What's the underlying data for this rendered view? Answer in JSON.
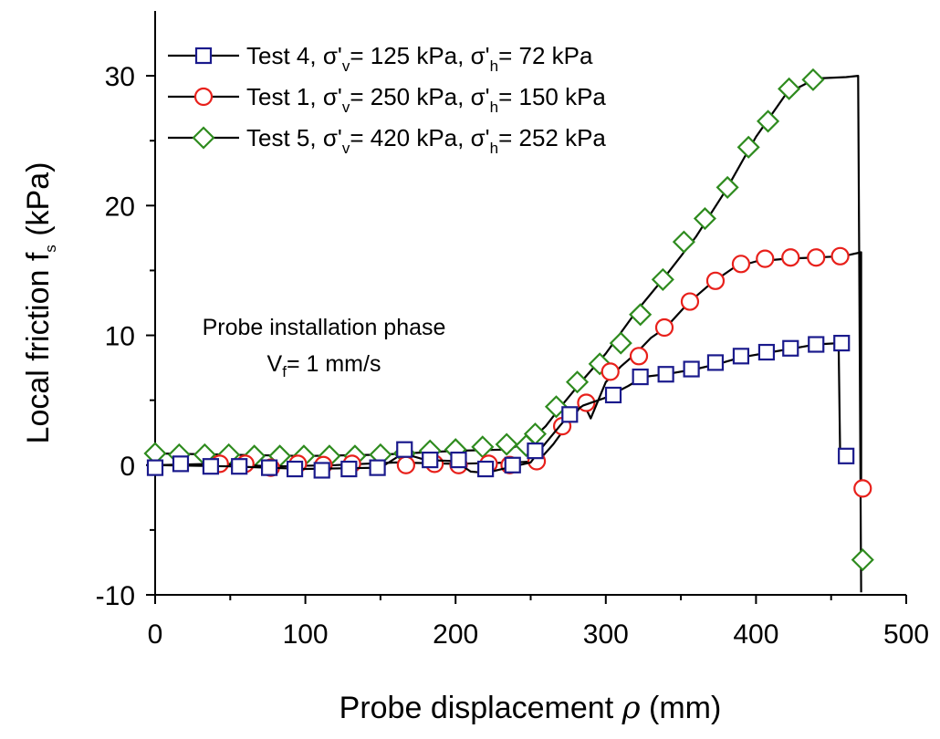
{
  "chart_data": {
    "type": "line",
    "xlabel": {
      "text": "Probe displacement ",
      "symbol": "ρ",
      "unit": " (mm)"
    },
    "ylabel": {
      "text": "Local friction f",
      "sub": "s",
      "unit": " (kPa)"
    },
    "xlim": [
      0,
      500
    ],
    "ylim": [
      -10,
      35
    ],
    "x_ticks": [
      0,
      100,
      200,
      300,
      400,
      500
    ],
    "y_ticks": [
      -10,
      0,
      10,
      20,
      30
    ],
    "legend_position": "top-left",
    "annotation": {
      "line1": "Probe installation phase",
      "line2_main": "V",
      "line2_sub": "f",
      "line2_rest": "= 1 mm/s"
    },
    "series": [
      {
        "name": "Test 4",
        "legend": {
          "prefix": "Test 4, σ'",
          "sub1": "v",
          "mid": "= 125 kPa, σ'",
          "sub2": "h",
          "suffix": "= 72 kPa"
        },
        "marker": "square",
        "color": "#1a1a8c",
        "line": [
          [
            0,
            0
          ],
          [
            50,
            -0.1
          ],
          [
            100,
            -0.3
          ],
          [
            150,
            -0.2
          ],
          [
            165,
            0.9
          ],
          [
            180,
            0.4
          ],
          [
            200,
            0.3
          ],
          [
            210,
            -0.5
          ],
          [
            220,
            -0.6
          ],
          [
            235,
            -0.2
          ],
          [
            250,
            0.2
          ],
          [
            255,
            1.0
          ],
          [
            265,
            2.4
          ],
          [
            275,
            3.8
          ],
          [
            285,
            4.6
          ],
          [
            300,
            5.2
          ],
          [
            315,
            6.1
          ],
          [
            325,
            6.8
          ],
          [
            340,
            7.0
          ],
          [
            360,
            7.4
          ],
          [
            375,
            7.8
          ],
          [
            390,
            8.3
          ],
          [
            410,
            8.7
          ],
          [
            425,
            9.0
          ],
          [
            440,
            9.3
          ],
          [
            455,
            9.4
          ],
          [
            456,
            0.7
          ]
        ],
        "markers": [
          [
            0,
            -0.2
          ],
          [
            17,
            0.1
          ],
          [
            37,
            -0.1
          ],
          [
            56,
            -0.1
          ],
          [
            76,
            -0.2
          ],
          [
            93,
            -0.3
          ],
          [
            111,
            -0.4
          ],
          [
            129,
            -0.3
          ],
          [
            148,
            -0.2
          ],
          [
            166,
            1.2
          ],
          [
            183,
            0.4
          ],
          [
            202,
            0.4
          ],
          [
            220,
            -0.3
          ],
          [
            238,
            0.0
          ],
          [
            253,
            1.1
          ],
          [
            276,
            3.9
          ],
          [
            305,
            5.4
          ],
          [
            323,
            6.8
          ],
          [
            340,
            7.0
          ],
          [
            357,
            7.4
          ],
          [
            373,
            7.9
          ],
          [
            390,
            8.4
          ],
          [
            407,
            8.7
          ],
          [
            423,
            9.0
          ],
          [
            440,
            9.3
          ],
          [
            457,
            9.4
          ],
          [
            460,
            0.7
          ]
        ]
      },
      {
        "name": "Test 1",
        "legend": {
          "prefix": "Test 1, σ'",
          "sub1": "v",
          "mid": "= 250 kPa, σ'",
          "sub2": "h",
          "suffix": "= 150 kPa"
        },
        "marker": "circle",
        "color": "#e8201b",
        "line": [
          [
            0,
            0
          ],
          [
            40,
            0.1
          ],
          [
            80,
            -0.1
          ],
          [
            120,
            0.0
          ],
          [
            160,
            0.2
          ],
          [
            200,
            0.1
          ],
          [
            240,
            0.2
          ],
          [
            255,
            0.3
          ],
          [
            265,
            1.6
          ],
          [
            275,
            3.2
          ],
          [
            285,
            4.8
          ],
          [
            290,
            3.6
          ],
          [
            300,
            6.4
          ],
          [
            310,
            7.6
          ],
          [
            320,
            8.6
          ],
          [
            330,
            9.8
          ],
          [
            340,
            10.6
          ],
          [
            355,
            12.5
          ],
          [
            370,
            14.0
          ],
          [
            385,
            15.2
          ],
          [
            400,
            15.7
          ],
          [
            420,
            15.9
          ],
          [
            440,
            16.0
          ],
          [
            458,
            16.1
          ],
          [
            470,
            16.4
          ],
          [
            470,
            -1.9
          ]
        ],
        "markers": [
          [
            43,
            0.1
          ],
          [
            60,
            0.1
          ],
          [
            77,
            -0.2
          ],
          [
            95,
            0.1
          ],
          [
            112,
            0.0
          ],
          [
            131,
            0.1
          ],
          [
            167,
            0.0
          ],
          [
            186,
            0.1
          ],
          [
            202,
            0.0
          ],
          [
            222,
            0.1
          ],
          [
            236,
            0.0
          ],
          [
            254,
            0.3
          ],
          [
            271,
            3.0
          ],
          [
            287,
            4.8
          ],
          [
            303,
            7.2
          ],
          [
            322,
            8.4
          ],
          [
            339,
            10.6
          ],
          [
            356,
            12.6
          ],
          [
            373,
            14.2
          ],
          [
            390,
            15.5
          ],
          [
            406,
            15.9
          ],
          [
            423,
            16.0
          ],
          [
            440,
            16.0
          ],
          [
            456,
            16.1
          ],
          [
            471,
            -1.8
          ]
        ]
      },
      {
        "name": "Test 5",
        "legend": {
          "prefix": "Test 5, σ'",
          "sub1": "v",
          "mid": "= 420 kPa, σ'",
          "sub2": "h",
          "suffix": "= 252 kPa"
        },
        "marker": "diamond",
        "color": "#2e8b1e",
        "line": [
          [
            0,
            0.9
          ],
          [
            50,
            0.8
          ],
          [
            100,
            0.7
          ],
          [
            150,
            0.8
          ],
          [
            200,
            1.1
          ],
          [
            235,
            1.2
          ],
          [
            250,
            1.9
          ],
          [
            260,
            3.0
          ],
          [
            270,
            4.5
          ],
          [
            285,
            6.6
          ],
          [
            300,
            8.6
          ],
          [
            320,
            11.8
          ],
          [
            340,
            14.6
          ],
          [
            360,
            17.6
          ],
          [
            380,
            21.2
          ],
          [
            400,
            25.3
          ],
          [
            420,
            28.6
          ],
          [
            440,
            29.8
          ],
          [
            460,
            29.9
          ],
          [
            468,
            30.0
          ],
          [
            470,
            -9.8
          ]
        ],
        "markers": [
          [
            0,
            0.9
          ],
          [
            16,
            0.8
          ],
          [
            33,
            0.8
          ],
          [
            49,
            0.8
          ],
          [
            66,
            0.7
          ],
          [
            83,
            0.7
          ],
          [
            99,
            0.7
          ],
          [
            116,
            0.7
          ],
          [
            133,
            0.7
          ],
          [
            150,
            0.8
          ],
          [
            166,
            0.9
          ],
          [
            183,
            1.1
          ],
          [
            200,
            1.2
          ],
          [
            218,
            1.4
          ],
          [
            234,
            1.6
          ],
          [
            247,
            1.5
          ],
          [
            253,
            2.4
          ],
          [
            267,
            4.5
          ],
          [
            281,
            6.4
          ],
          [
            296,
            7.8
          ],
          [
            310,
            9.4
          ],
          [
            323,
            11.6
          ],
          [
            338,
            14.3
          ],
          [
            352,
            17.2
          ],
          [
            366,
            19.0
          ],
          [
            381,
            21.4
          ],
          [
            395,
            24.5
          ],
          [
            408,
            26.5
          ],
          [
            422,
            29.0
          ],
          [
            438,
            29.7
          ],
          [
            471,
            -7.3
          ]
        ]
      }
    ]
  }
}
